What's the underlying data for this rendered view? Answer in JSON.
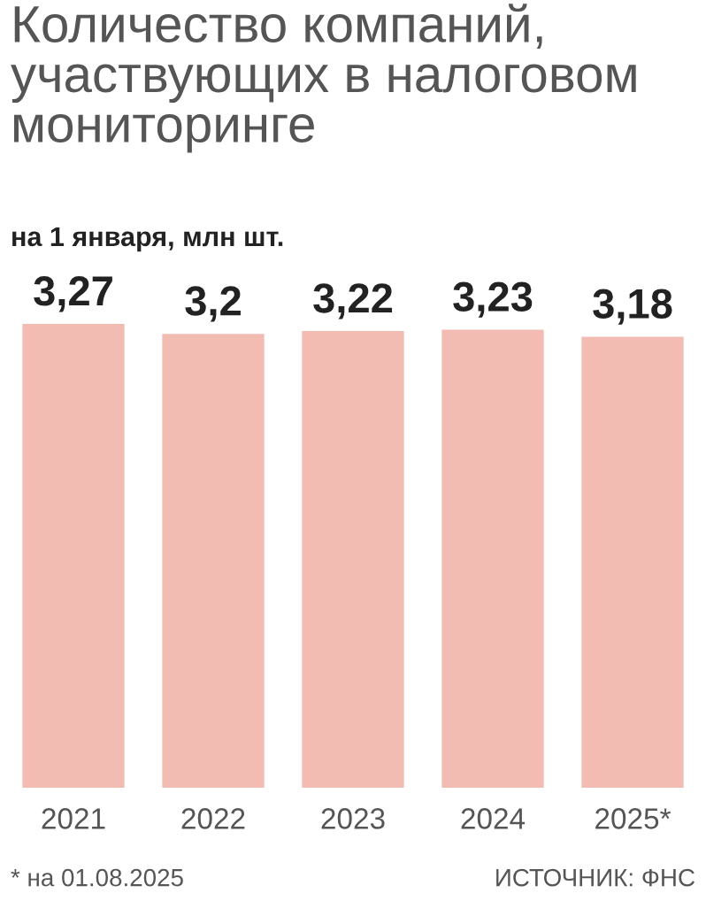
{
  "chart_data": {
    "type": "bar",
    "title": "Количество компаний, участвующих в налоговом мониторинге",
    "subtitle": "на 1 января, млн шт.",
    "categories": [
      "2021",
      "2022",
      "2023",
      "2024",
      "2025*"
    ],
    "values": [
      3.27,
      3.2,
      3.22,
      3.23,
      3.18
    ],
    "color": "#f2bcb3",
    "value_labels": [
      "3,27",
      "3,2",
      "3,22",
      "3,23",
      "3,18"
    ],
    "annotations": [
      "* на 01.08.2025",
      "ИСТОЧНИК: ФНС"
    ],
    "grid": false,
    "legend": false
  }
}
